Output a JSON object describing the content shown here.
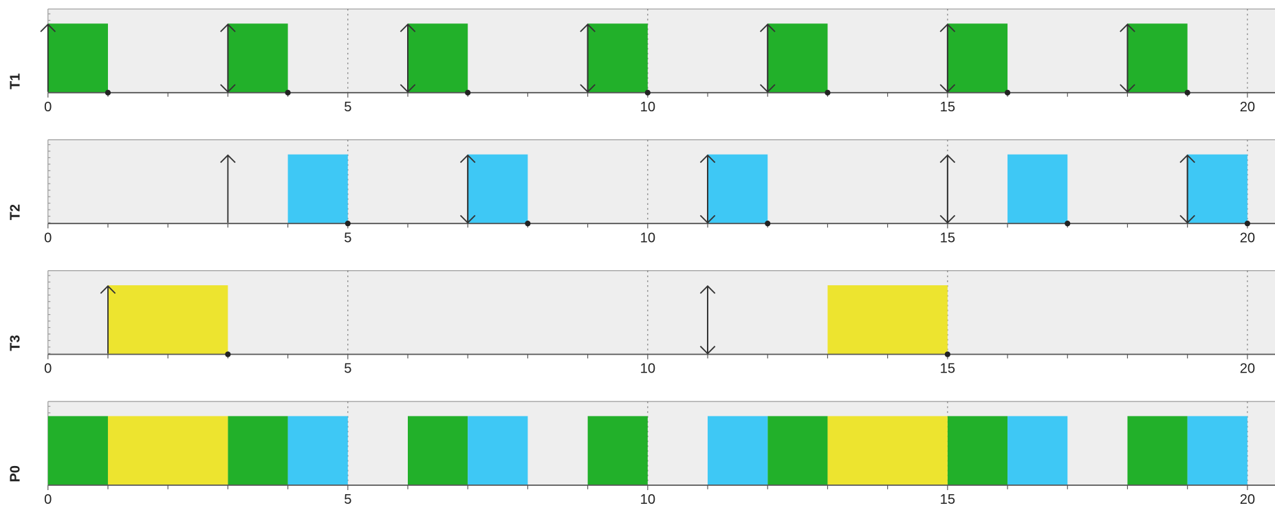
{
  "chart_data": [
    {
      "type": "gantt",
      "name": "T1",
      "xlim": [
        0,
        20.46
      ],
      "xticks": [
        0,
        5,
        10,
        15,
        20
      ],
      "minor_xticks": [
        1,
        2,
        3,
        4,
        6,
        7,
        8,
        9,
        11,
        12,
        13,
        14,
        16,
        17,
        18,
        19
      ],
      "series": [
        {
          "color": "#22b02a",
          "bars": [
            [
              0,
              1
            ],
            [
              3,
              4
            ],
            [
              6,
              7
            ],
            [
              9,
              10
            ],
            [
              12,
              13
            ],
            [
              15,
              16
            ],
            [
              18,
              19
            ]
          ]
        }
      ],
      "arrivals": [
        0,
        3,
        6,
        9,
        12,
        15,
        18
      ],
      "deadlines": [
        3,
        6,
        9,
        12,
        15,
        18
      ],
      "completions": [
        1,
        4,
        7,
        10,
        13,
        16,
        19
      ]
    },
    {
      "type": "gantt",
      "name": "T2",
      "xlim": [
        0,
        20.46
      ],
      "xticks": [
        0,
        5,
        10,
        15,
        20
      ],
      "minor_xticks": [
        1,
        2,
        3,
        4,
        6,
        7,
        8,
        9,
        11,
        12,
        13,
        14,
        16,
        17,
        18,
        19
      ],
      "series": [
        {
          "color": "#3ec8f5",
          "bars": [
            [
              4,
              5
            ],
            [
              7,
              8
            ],
            [
              11,
              12
            ],
            [
              16,
              17
            ],
            [
              19,
              20
            ]
          ]
        }
      ],
      "arrivals": [
        3,
        7,
        11,
        15,
        19
      ],
      "deadlines": [
        7,
        11,
        15,
        19
      ],
      "completions": [
        5,
        8,
        12,
        17,
        20
      ]
    },
    {
      "type": "gantt",
      "name": "T3",
      "xlim": [
        0,
        20.46
      ],
      "xticks": [
        0,
        5,
        10,
        15,
        20
      ],
      "minor_xticks": [
        1,
        2,
        3,
        4,
        6,
        7,
        8,
        9,
        11,
        12,
        13,
        14,
        16,
        17,
        18,
        19
      ],
      "series": [
        {
          "color": "#ede42f",
          "bars": [
            [
              1,
              3
            ],
            [
              13,
              15
            ]
          ]
        }
      ],
      "arrivals": [
        1,
        11
      ],
      "deadlines": [
        11
      ],
      "completions": [
        3,
        15
      ]
    },
    {
      "type": "gantt",
      "name": "P0",
      "xlim": [
        0,
        20.46
      ],
      "xticks": [
        0,
        5,
        10,
        15,
        20
      ],
      "minor_xticks": [
        1,
        2,
        3,
        4,
        6,
        7,
        8,
        9,
        11,
        12,
        13,
        14,
        16,
        17,
        18,
        19
      ],
      "series": [
        {
          "color": "#22b02a",
          "bars": [
            [
              0,
              1
            ],
            [
              3,
              4
            ],
            [
              6,
              7
            ],
            [
              9,
              10
            ],
            [
              12,
              13
            ],
            [
              15,
              16
            ],
            [
              18,
              19
            ]
          ]
        },
        {
          "color": "#ede42f",
          "bars": [
            [
              1,
              3
            ],
            [
              13,
              15
            ]
          ]
        },
        {
          "color": "#3ec8f5",
          "bars": [
            [
              4,
              5
            ],
            [
              7,
              8
            ],
            [
              11,
              12
            ],
            [
              16,
              17
            ],
            [
              19,
              20
            ]
          ]
        }
      ],
      "arrivals": [],
      "deadlines": [],
      "completions": []
    }
  ]
}
